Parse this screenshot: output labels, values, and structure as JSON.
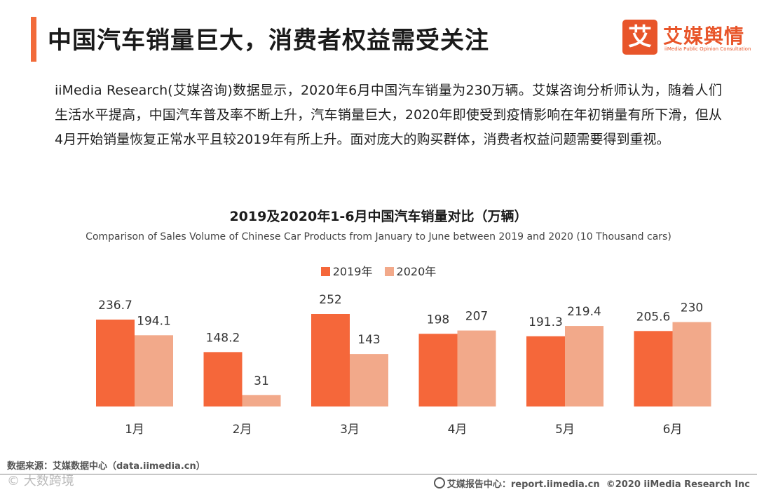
{
  "header": {
    "title": "中国汽车销量巨大，消费者权益需受关注"
  },
  "logo": {
    "mark": "艾",
    "name": "艾媒舆情",
    "sub": "iiMedia Public Opinion Consultation"
  },
  "paragraph": "iiMedia Research(艾媒咨询)数据显示，2020年6月中国汽车销量为230万辆。艾媒咨询分析师认为，随着人们生活水平提高，中国汽车普及率不断上升，汽车销量巨大，2020年即使受到疫情影响在年初销量有所下滑，但从4月开始销量恢复正常水平且较2019年有所上升。面对庞大的购买群体，消费者权益问题需要得到重视。",
  "chart_data": {
    "type": "bar",
    "title": "2019及2020年1-6月中国汽车销量对比（万辆）",
    "subtitle": "Comparison of Sales Volume of Chinese Car Products from January to June between 2019 and 2020 (10 Thousand cars)",
    "categories": [
      "1月",
      "2月",
      "3月",
      "4月",
      "5月",
      "6月"
    ],
    "series": [
      {
        "name": "2019年",
        "color": "#f5673a",
        "values": [
          236.7,
          148.2,
          252,
          198,
          191.3,
          205.6
        ],
        "labels": [
          "236.7",
          "148.2",
          "252",
          "198",
          "191.3",
          "205.6"
        ]
      },
      {
        "name": "2020年",
        "color": "#f2a98a",
        "values": [
          194.1,
          31,
          143,
          207,
          219.4,
          230
        ],
        "labels": [
          "194.1",
          "31",
          "143",
          "207",
          "219.4",
          "230"
        ]
      }
    ],
    "ylim": [
      0,
      252
    ],
    "legend_position": "top-center",
    "grid": false
  },
  "footer": {
    "source": "数据来源：艾媒数据中心（data.iimedia.cn）",
    "watermark": "© 大数跨境",
    "report_center": "艾媒报告中心：report.iimedia.cn",
    "copyright": "©2020  iiMedia Research  Inc"
  }
}
